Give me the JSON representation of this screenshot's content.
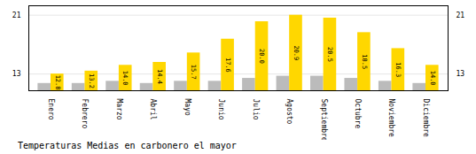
{
  "chart_data": {
    "type": "bar",
    "title": "Temperaturas Medias en carbonero el mayor",
    "categories": [
      "Enero",
      "Febrero",
      "Marzo",
      "Abril",
      "Mayo",
      "Junio",
      "Julio",
      "Agosto",
      "Septiembre",
      "Octubre",
      "Noviembre",
      "Diciembre"
    ],
    "series": [
      {
        "color": "#BBBBBB",
        "values": [
          11.5,
          11.5,
          11.8,
          11.5,
          11.8,
          11.8,
          12.2,
          12.5,
          12.5,
          12.2,
          11.8,
          11.5
        ]
      },
      {
        "color": "#FFD700",
        "values": [
          12.8,
          13.2,
          14.0,
          14.4,
          15.7,
          17.6,
          20.0,
          20.9,
          20.5,
          18.5,
          16.3,
          14.0
        ],
        "value_labels": [
          "12.8",
          "13.2",
          "14.0",
          "14.4",
          "15.7",
          "17.6",
          "20.0",
          "20.9",
          "20.5",
          "18.5",
          "16.3",
          "14.0"
        ],
        "data_labels": true
      }
    ],
    "ylim": [
      10.5,
      22.2
    ],
    "yticks": [
      12.8,
      20.9
    ],
    "grid": true
  }
}
